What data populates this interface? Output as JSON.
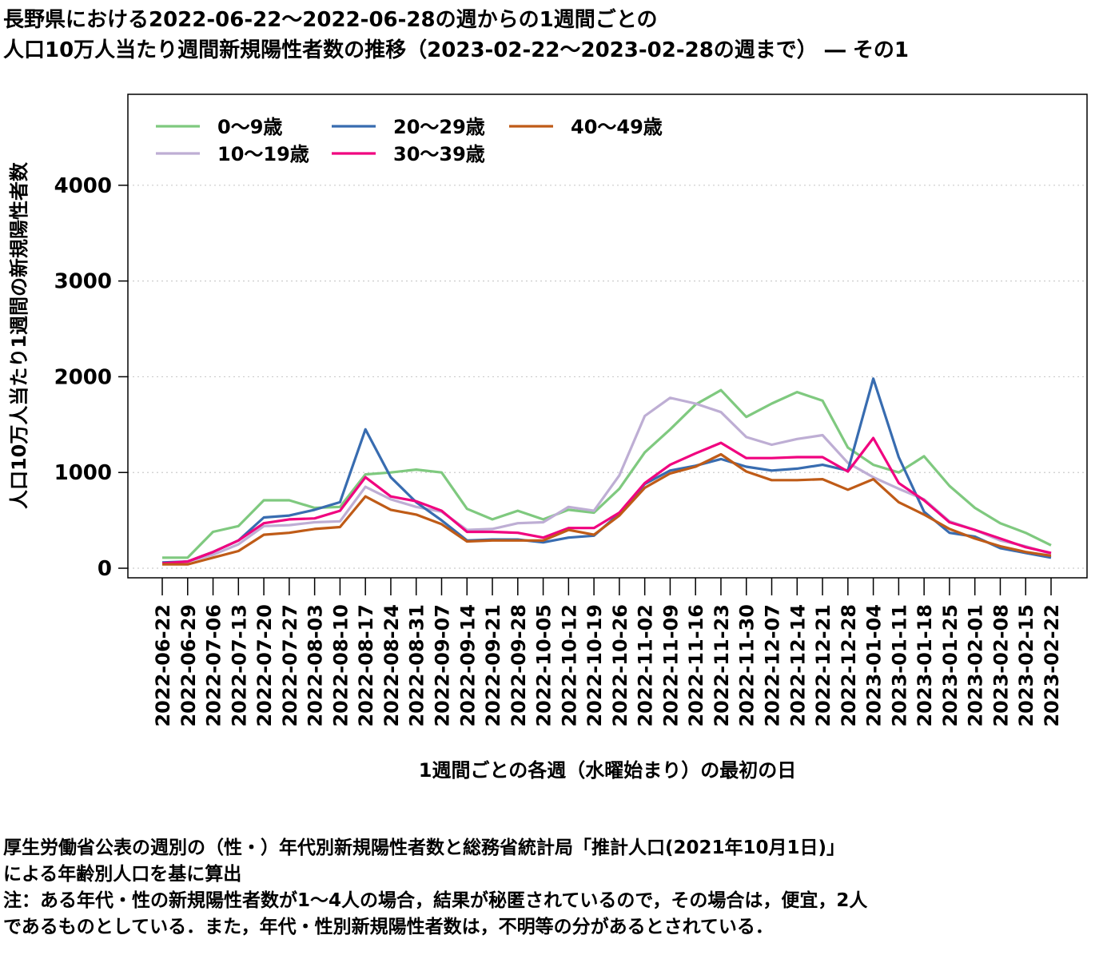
{
  "title_line1": "長野県における2022-06-22～2022-06-28の週からの1週間ごとの",
  "title_line2": "人口10万人当たり週間新規陽性者数の推移（2023-02-22～2023-02-28の週まで） ― その1",
  "notes": [
    "厚生労働省公表の週別の（性・）年代別新規陽性者数と総務省統計局「推計人口(2021年10月1日)」",
    "による年齢別人口を基に算出",
    "注：ある年代・性の新規陽性者数が1～4人の場合，結果が秘匿されているので，その場合は，便宜，2人",
    "であるものとしている．また，年代・性別新規陽性者数は，不明等の分があるとされている．"
  ],
  "chart_data": {
    "type": "line",
    "xlabel": "1週間ごとの各週（水曜始まり）の最初の日",
    "ylabel": "人口10万人当たり1週間の新規陽性者数",
    "ylim": [
      -100,
      4950
    ],
    "yticks": [
      0,
      1000,
      2000,
      3000,
      4000
    ],
    "grid": "horizontal dotted",
    "legend_position": "top-left",
    "categories": [
      "2022-06-22",
      "2022-06-29",
      "2022-07-06",
      "2022-07-13",
      "2022-07-20",
      "2022-07-27",
      "2022-08-03",
      "2022-08-10",
      "2022-08-17",
      "2022-08-24",
      "2022-08-31",
      "2022-09-07",
      "2022-09-14",
      "2022-09-21",
      "2022-09-28",
      "2022-10-05",
      "2022-10-12",
      "2022-10-19",
      "2022-10-26",
      "2022-11-02",
      "2022-11-09",
      "2022-11-16",
      "2022-11-23",
      "2022-11-30",
      "2022-12-07",
      "2022-12-14",
      "2022-12-21",
      "2022-12-28",
      "2023-01-04",
      "2023-01-11",
      "2023-01-18",
      "2023-01-25",
      "2023-02-01",
      "2023-02-08",
      "2023-02-15",
      "2023-02-22"
    ],
    "series": [
      {
        "name": "0～9歳",
        "color": "#7fc97f",
        "values": [
          110,
          110,
          380,
          440,
          710,
          710,
          630,
          640,
          980,
          1000,
          1030,
          1000,
          620,
          510,
          600,
          510,
          610,
          580,
          830,
          1210,
          1450,
          1710,
          1860,
          1580,
          1720,
          1840,
          1750,
          1260,
          1080,
          1000,
          1170,
          860,
          630,
          470,
          370,
          240
        ]
      },
      {
        "name": "10～19歳",
        "color": "#beaed4",
        "values": [
          50,
          70,
          140,
          250,
          440,
          450,
          480,
          490,
          850,
          720,
          640,
          590,
          400,
          410,
          470,
          480,
          640,
          600,
          970,
          1590,
          1780,
          1720,
          1630,
          1370,
          1290,
          1350,
          1390,
          1100,
          950,
          830,
          720,
          490,
          400,
          290,
          230,
          150
        ]
      },
      {
        "name": "20～29歳",
        "color": "#386cb0",
        "values": [
          60,
          70,
          170,
          290,
          530,
          550,
          610,
          690,
          1450,
          950,
          690,
          500,
          290,
          300,
          300,
          270,
          320,
          340,
          570,
          880,
          1020,
          1070,
          1140,
          1060,
          1020,
          1040,
          1080,
          1020,
          1980,
          1160,
          590,
          370,
          330,
          210,
          160,
          110
        ]
      },
      {
        "name": "30～39歳",
        "color": "#f0027f",
        "values": [
          50,
          70,
          170,
          290,
          470,
          510,
          520,
          600,
          950,
          750,
          700,
          600,
          380,
          380,
          370,
          320,
          420,
          420,
          580,
          890,
          1080,
          1200,
          1310,
          1150,
          1150,
          1160,
          1160,
          1010,
          1360,
          890,
          710,
          480,
          400,
          310,
          220,
          160
        ]
      },
      {
        "name": "40～49歳",
        "color": "#bf5b17",
        "values": [
          40,
          40,
          110,
          180,
          350,
          370,
          410,
          430,
          750,
          610,
          560,
          460,
          280,
          290,
          290,
          290,
          400,
          350,
          550,
          840,
          990,
          1060,
          1190,
          1010,
          920,
          920,
          930,
          820,
          930,
          690,
          560,
          410,
          310,
          230,
          170,
          130
        ]
      }
    ]
  }
}
